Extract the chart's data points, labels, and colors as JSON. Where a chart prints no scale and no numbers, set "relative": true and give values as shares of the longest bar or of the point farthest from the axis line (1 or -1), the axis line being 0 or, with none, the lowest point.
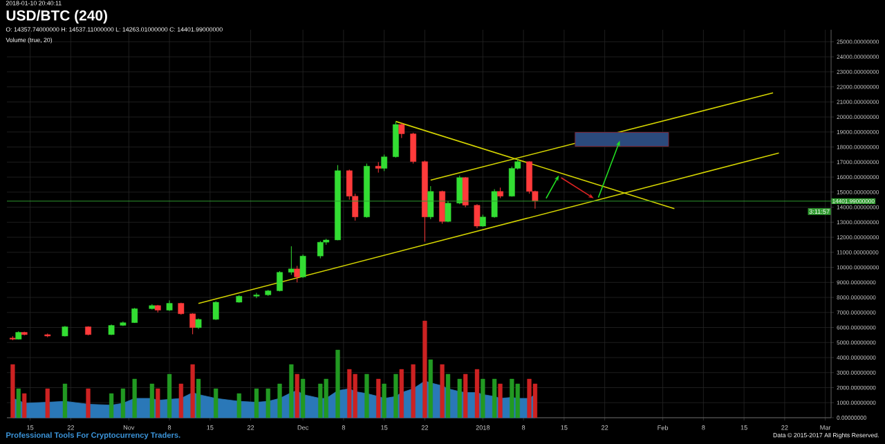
{
  "chart_data": [
    {
      "type": "candlestick",
      "title": "USD/BTC (240)",
      "annotations": [
        "2018-01-10 20:40:11",
        "O: 14357.74000000 H: 14537.11000000 L: 14263.01000000 C: 14401.99000000",
        "Volume (true, 20)",
        "3:11:57",
        "Professional Tools For Cryptocurrency Traders.",
        "Data © 2015-2017 All Rights Reserved."
      ],
      "x": [
        "2017-10-12",
        "2017-10-13",
        "2017-10-14",
        "2017-10-18",
        "2017-10-21",
        "2017-10-25",
        "2017-10-29",
        "2017-10-31",
        "2017-11-02",
        "2017-11-05",
        "2017-11-06",
        "2017-11-08",
        "2017-11-10",
        "2017-11-12",
        "2017-11-13",
        "2017-11-16",
        "2017-11-20",
        "2017-11-23",
        "2017-11-25",
        "2017-11-27",
        "2017-11-29",
        "2017-11-30",
        "2017-12-01",
        "2017-12-04",
        "2017-12-05",
        "2017-12-07",
        "2017-12-09",
        "2017-12-10",
        "2017-12-12",
        "2017-12-14",
        "2017-12-15",
        "2017-12-17",
        "2017-12-18",
        "2017-12-20",
        "2017-12-22",
        "2017-12-23",
        "2017-12-25",
        "2017-12-26",
        "2017-12-28",
        "2017-12-29",
        "2017-12-31",
        "2018-01-01",
        "2018-01-03",
        "2018-01-04",
        "2018-01-06",
        "2018-01-07",
        "2018-01-09",
        "2018-01-10"
      ],
      "ohlc": [
        [
          5300,
          5420,
          5150,
          5220
        ],
        [
          5220,
          5750,
          5200,
          5680
        ],
        [
          5680,
          5720,
          5480,
          5525
        ],
        [
          5525,
          5600,
          5350,
          5430
        ],
        [
          5430,
          6100,
          5400,
          6050
        ],
        [
          6050,
          6080,
          5480,
          5525
        ],
        [
          5525,
          6200,
          5500,
          6140
        ],
        [
          6140,
          6400,
          6100,
          6320
        ],
        [
          6320,
          7300,
          6300,
          7250
        ],
        [
          7250,
          7550,
          7200,
          7460
        ],
        [
          7460,
          7500,
          7000,
          7150
        ],
        [
          7150,
          7800,
          7100,
          7610
        ],
        [
          7610,
          7650,
          6850,
          6910
        ],
        [
          6910,
          6950,
          5550,
          5990
        ],
        [
          5990,
          6600,
          5900,
          6540
        ],
        [
          6540,
          7750,
          6500,
          7680
        ],
        [
          7680,
          8150,
          7650,
          8080
        ],
        [
          8080,
          8300,
          7950,
          8170
        ],
        [
          8170,
          8500,
          8100,
          8440
        ],
        [
          8440,
          9750,
          8400,
          9670
        ],
        [
          9670,
          11400,
          9500,
          9900
        ],
        [
          9900,
          10100,
          9000,
          9360
        ],
        [
          9360,
          10850,
          9300,
          10750
        ],
        [
          10750,
          11750,
          10600,
          11670
        ],
        [
          11670,
          11900,
          11500,
          11820
        ],
        [
          11820,
          16800,
          11800,
          16430
        ],
        [
          16430,
          16500,
          14500,
          14730
        ],
        [
          14730,
          14900,
          13100,
          13350
        ],
        [
          13350,
          16900,
          13300,
          16730
        ],
        [
          16730,
          17000,
          16300,
          16580
        ],
        [
          16580,
          17500,
          16400,
          17350
        ],
        [
          17350,
          19700,
          17300,
          19500
        ],
        [
          19500,
          19600,
          18600,
          18880
        ],
        [
          18880,
          18950,
          16900,
          17030
        ],
        [
          17030,
          17100,
          11700,
          13350
        ],
        [
          13350,
          15400,
          13200,
          15050
        ],
        [
          15050,
          15100,
          12900,
          13050
        ],
        [
          13050,
          14400,
          13000,
          14270
        ],
        [
          14270,
          16100,
          14200,
          15970
        ],
        [
          15970,
          16000,
          14000,
          14130
        ],
        [
          14130,
          14200,
          12600,
          12740
        ],
        [
          12740,
          13500,
          12700,
          13350
        ],
        [
          13350,
          15200,
          13300,
          15050
        ],
        [
          15050,
          15300,
          14600,
          14730
        ],
        [
          14730,
          16700,
          14700,
          16580
        ],
        [
          16580,
          17200,
          16500,
          17030
        ],
        [
          17030,
          17050,
          14900,
          15050
        ],
        [
          15050,
          15100,
          13900,
          14402
        ]
      ],
      "colors": [
        "#ff3b3b",
        "#33dd33",
        "#ff3b3b",
        "#ff3b3b",
        "#33dd33",
        "#ff3b3b",
        "#33dd33",
        "#33dd33",
        "#33dd33",
        "#33dd33",
        "#ff3b3b",
        "#33dd33",
        "#ff3b3b",
        "#ff3b3b",
        "#33dd33",
        "#33dd33",
        "#33dd33",
        "#33dd33",
        "#33dd33",
        "#33dd33",
        "#33dd33",
        "#ff3b3b",
        "#33dd33",
        "#33dd33",
        "#33dd33",
        "#33dd33",
        "#ff3b3b",
        "#ff3b3b",
        "#33dd33",
        "#ff3b3b",
        "#33dd33",
        "#33dd33",
        "#ff3b3b",
        "#ff3b3b",
        "#ff3b3b",
        "#33dd33",
        "#ff3b3b",
        "#33dd33",
        "#33dd33",
        "#ff3b3b",
        "#ff3b3b",
        "#33dd33",
        "#33dd33",
        "#ff3b3b",
        "#33dd33",
        "#33dd33",
        "#ff3b3b",
        "#ff3b3b"
      ],
      "series": [
        {
          "type": "line",
          "color": "#d4d400",
          "x": [
            "2017-11-13",
            "2018-02-21"
          ],
          "values": [
            7600,
            17600
          ]
        },
        {
          "type": "line",
          "color": "#d4d400",
          "x": [
            "2017-12-23",
            "2018-02-20"
          ],
          "values": [
            15800,
            21600
          ]
        },
        {
          "type": "line",
          "color": "#d4d400",
          "x": [
            "2017-12-17",
            "2018-02-03"
          ],
          "values": [
            19700,
            13900
          ]
        }
      ],
      "ref_lines": [
        {
          "axis": "y",
          "value": 14401.99,
          "label": "14401.99000000",
          "color": "#2f9a2f"
        }
      ],
      "grid": true,
      "xlim": [
        "2017-10-11",
        "2018-03-02"
      ],
      "xticks": [
        {
          "value": "2017-10-15",
          "label": "15"
        },
        {
          "value": "2017-10-22",
          "label": "22"
        },
        {
          "value": "2017-11-01",
          "label": "Nov"
        },
        {
          "value": "2017-11-08",
          "label": "8"
        },
        {
          "value": "2017-11-15",
          "label": "15"
        },
        {
          "value": "2017-11-22",
          "label": "22"
        },
        {
          "value": "2017-12-01",
          "label": "Dec"
        },
        {
          "value": "2017-12-08",
          "label": "8"
        },
        {
          "value": "2017-12-15",
          "label": "15"
        },
        {
          "value": "2017-12-22",
          "label": "22"
        },
        {
          "value": "2018-01-01",
          "label": "2018"
        },
        {
          "value": "2018-01-08",
          "label": "8"
        },
        {
          "value": "2018-01-15",
          "label": "15"
        },
        {
          "value": "2018-01-22",
          "label": "22"
        },
        {
          "value": "2018-02-01",
          "label": "Feb"
        },
        {
          "value": "2018-02-08",
          "label": "8"
        },
        {
          "value": "2018-02-15",
          "label": "15"
        },
        {
          "value": "2018-02-22",
          "label": "22"
        },
        {
          "value": "2018-03-01",
          "label": "Mar"
        }
      ],
      "ylim": [
        0,
        25800
      ],
      "yticks": [
        {
          "value": 0,
          "label": "0.00000000"
        },
        {
          "value": 1000,
          "label": "1000.00000000"
        },
        {
          "value": 2000,
          "label": "2000.00000000"
        },
        {
          "value": 3000,
          "label": "3000.00000000"
        },
        {
          "value": 4000,
          "label": "4000.00000000"
        },
        {
          "value": 5000,
          "label": "5000.00000000"
        },
        {
          "value": 6000,
          "label": "6000.00000000"
        },
        {
          "value": 7000,
          "label": "7000.00000000"
        },
        {
          "value": 8000,
          "label": "8000.00000000"
        },
        {
          "value": 9000,
          "label": "9000.00000000"
        },
        {
          "value": 10000,
          "label": "10000.00000000"
        },
        {
          "value": 11000,
          "label": "11000.00000000"
        },
        {
          "value": 12000,
          "label": "12000.00000000"
        },
        {
          "value": 13000,
          "label": "13000.00000000"
        },
        {
          "value": 14000,
          "label": "14000.00000000"
        },
        {
          "value": 15000,
          "label": "15000.00000000"
        },
        {
          "value": 16000,
          "label": "16000.00000000"
        },
        {
          "value": 17000,
          "label": "17000.00000000"
        },
        {
          "value": 18000,
          "label": "18000.00000000"
        },
        {
          "value": 19000,
          "label": "19000.00000000"
        },
        {
          "value": 20000,
          "label": "20000.00000000"
        },
        {
          "value": 21000,
          "label": "21000.00000000"
        },
        {
          "value": 22000,
          "label": "22000.00000000"
        },
        {
          "value": 23000,
          "label": "23000.00000000"
        },
        {
          "value": 24000,
          "label": "24000.00000000"
        },
        {
          "value": 25000,
          "label": "25000.00000000"
        }
      ]
    },
    {
      "type": "bar",
      "relative": true,
      "tick_labels": false,
      "xlim": [
        "2017-10-11",
        "2018-03-02"
      ],
      "x": [
        "2017-10-12",
        "2017-10-13",
        "2017-10-14",
        "2017-10-18",
        "2017-10-21",
        "2017-10-25",
        "2017-10-29",
        "2017-10-31",
        "2017-11-02",
        "2017-11-05",
        "2017-11-06",
        "2017-11-08",
        "2017-11-10",
        "2017-11-12",
        "2017-11-13",
        "2017-11-16",
        "2017-11-20",
        "2017-11-23",
        "2017-11-25",
        "2017-11-27",
        "2017-11-29",
        "2017-11-30",
        "2017-12-01",
        "2017-12-04",
        "2017-12-05",
        "2017-12-07",
        "2017-12-09",
        "2017-12-10",
        "2017-12-12",
        "2017-12-14",
        "2017-12-15",
        "2017-12-17",
        "2017-12-18",
        "2017-12-20",
        "2017-12-22",
        "2017-12-23",
        "2017-12-25",
        "2017-12-26",
        "2017-12-28",
        "2017-12-29",
        "2017-12-31",
        "2018-01-01",
        "2018-01-03",
        "2018-01-04",
        "2018-01-06",
        "2018-01-07",
        "2018-01-09",
        "2018-01-10"
      ],
      "series": [
        {
          "type": "area",
          "color": "#2a78b8",
          "values": [
            0.2,
            0.18,
            0.15,
            0.16,
            0.17,
            0.14,
            0.13,
            0.15,
            0.2,
            0.2,
            0.18,
            0.19,
            0.2,
            0.26,
            0.24,
            0.2,
            0.17,
            0.16,
            0.17,
            0.2,
            0.26,
            0.28,
            0.24,
            0.2,
            0.2,
            0.28,
            0.3,
            0.27,
            0.25,
            0.22,
            0.2,
            0.22,
            0.26,
            0.3,
            0.38,
            0.36,
            0.33,
            0.3,
            0.27,
            0.26,
            0.26,
            0.24,
            0.22,
            0.2,
            0.21,
            0.2,
            0.2,
            0.24
          ]
        },
        {
          "type": "bar",
          "values": [
            0.55,
            0.3,
            0.25,
            0.3,
            0.35,
            0.3,
            0.25,
            0.3,
            0.4,
            0.35,
            0.3,
            0.45,
            0.35,
            0.55,
            0.4,
            0.3,
            0.25,
            0.3,
            0.3,
            0.35,
            0.55,
            0.45,
            0.4,
            0.35,
            0.4,
            0.7,
            0.5,
            0.45,
            0.45,
            0.4,
            0.35,
            0.45,
            0.5,
            0.55,
            1.0,
            0.6,
            0.55,
            0.45,
            0.4,
            0.45,
            0.5,
            0.4,
            0.4,
            0.35,
            0.4,
            0.35,
            0.4,
            0.35
          ],
          "colors": [
            "#cc2222",
            "#229922",
            "#cc2222",
            "#cc2222",
            "#229922",
            "#cc2222",
            "#229922",
            "#229922",
            "#229922",
            "#229922",
            "#cc2222",
            "#229922",
            "#cc2222",
            "#cc2222",
            "#229922",
            "#229922",
            "#229922",
            "#229922",
            "#229922",
            "#229922",
            "#229922",
            "#cc2222",
            "#229922",
            "#229922",
            "#229922",
            "#229922",
            "#cc2222",
            "#cc2222",
            "#229922",
            "#cc2222",
            "#229922",
            "#229922",
            "#cc2222",
            "#cc2222",
            "#cc2222",
            "#229922",
            "#cc2222",
            "#229922",
            "#229922",
            "#cc2222",
            "#cc2222",
            "#229922",
            "#229922",
            "#cc2222",
            "#229922",
            "#229922",
            "#cc2222",
            "#cc2222"
          ]
        }
      ]
    }
  ]
}
